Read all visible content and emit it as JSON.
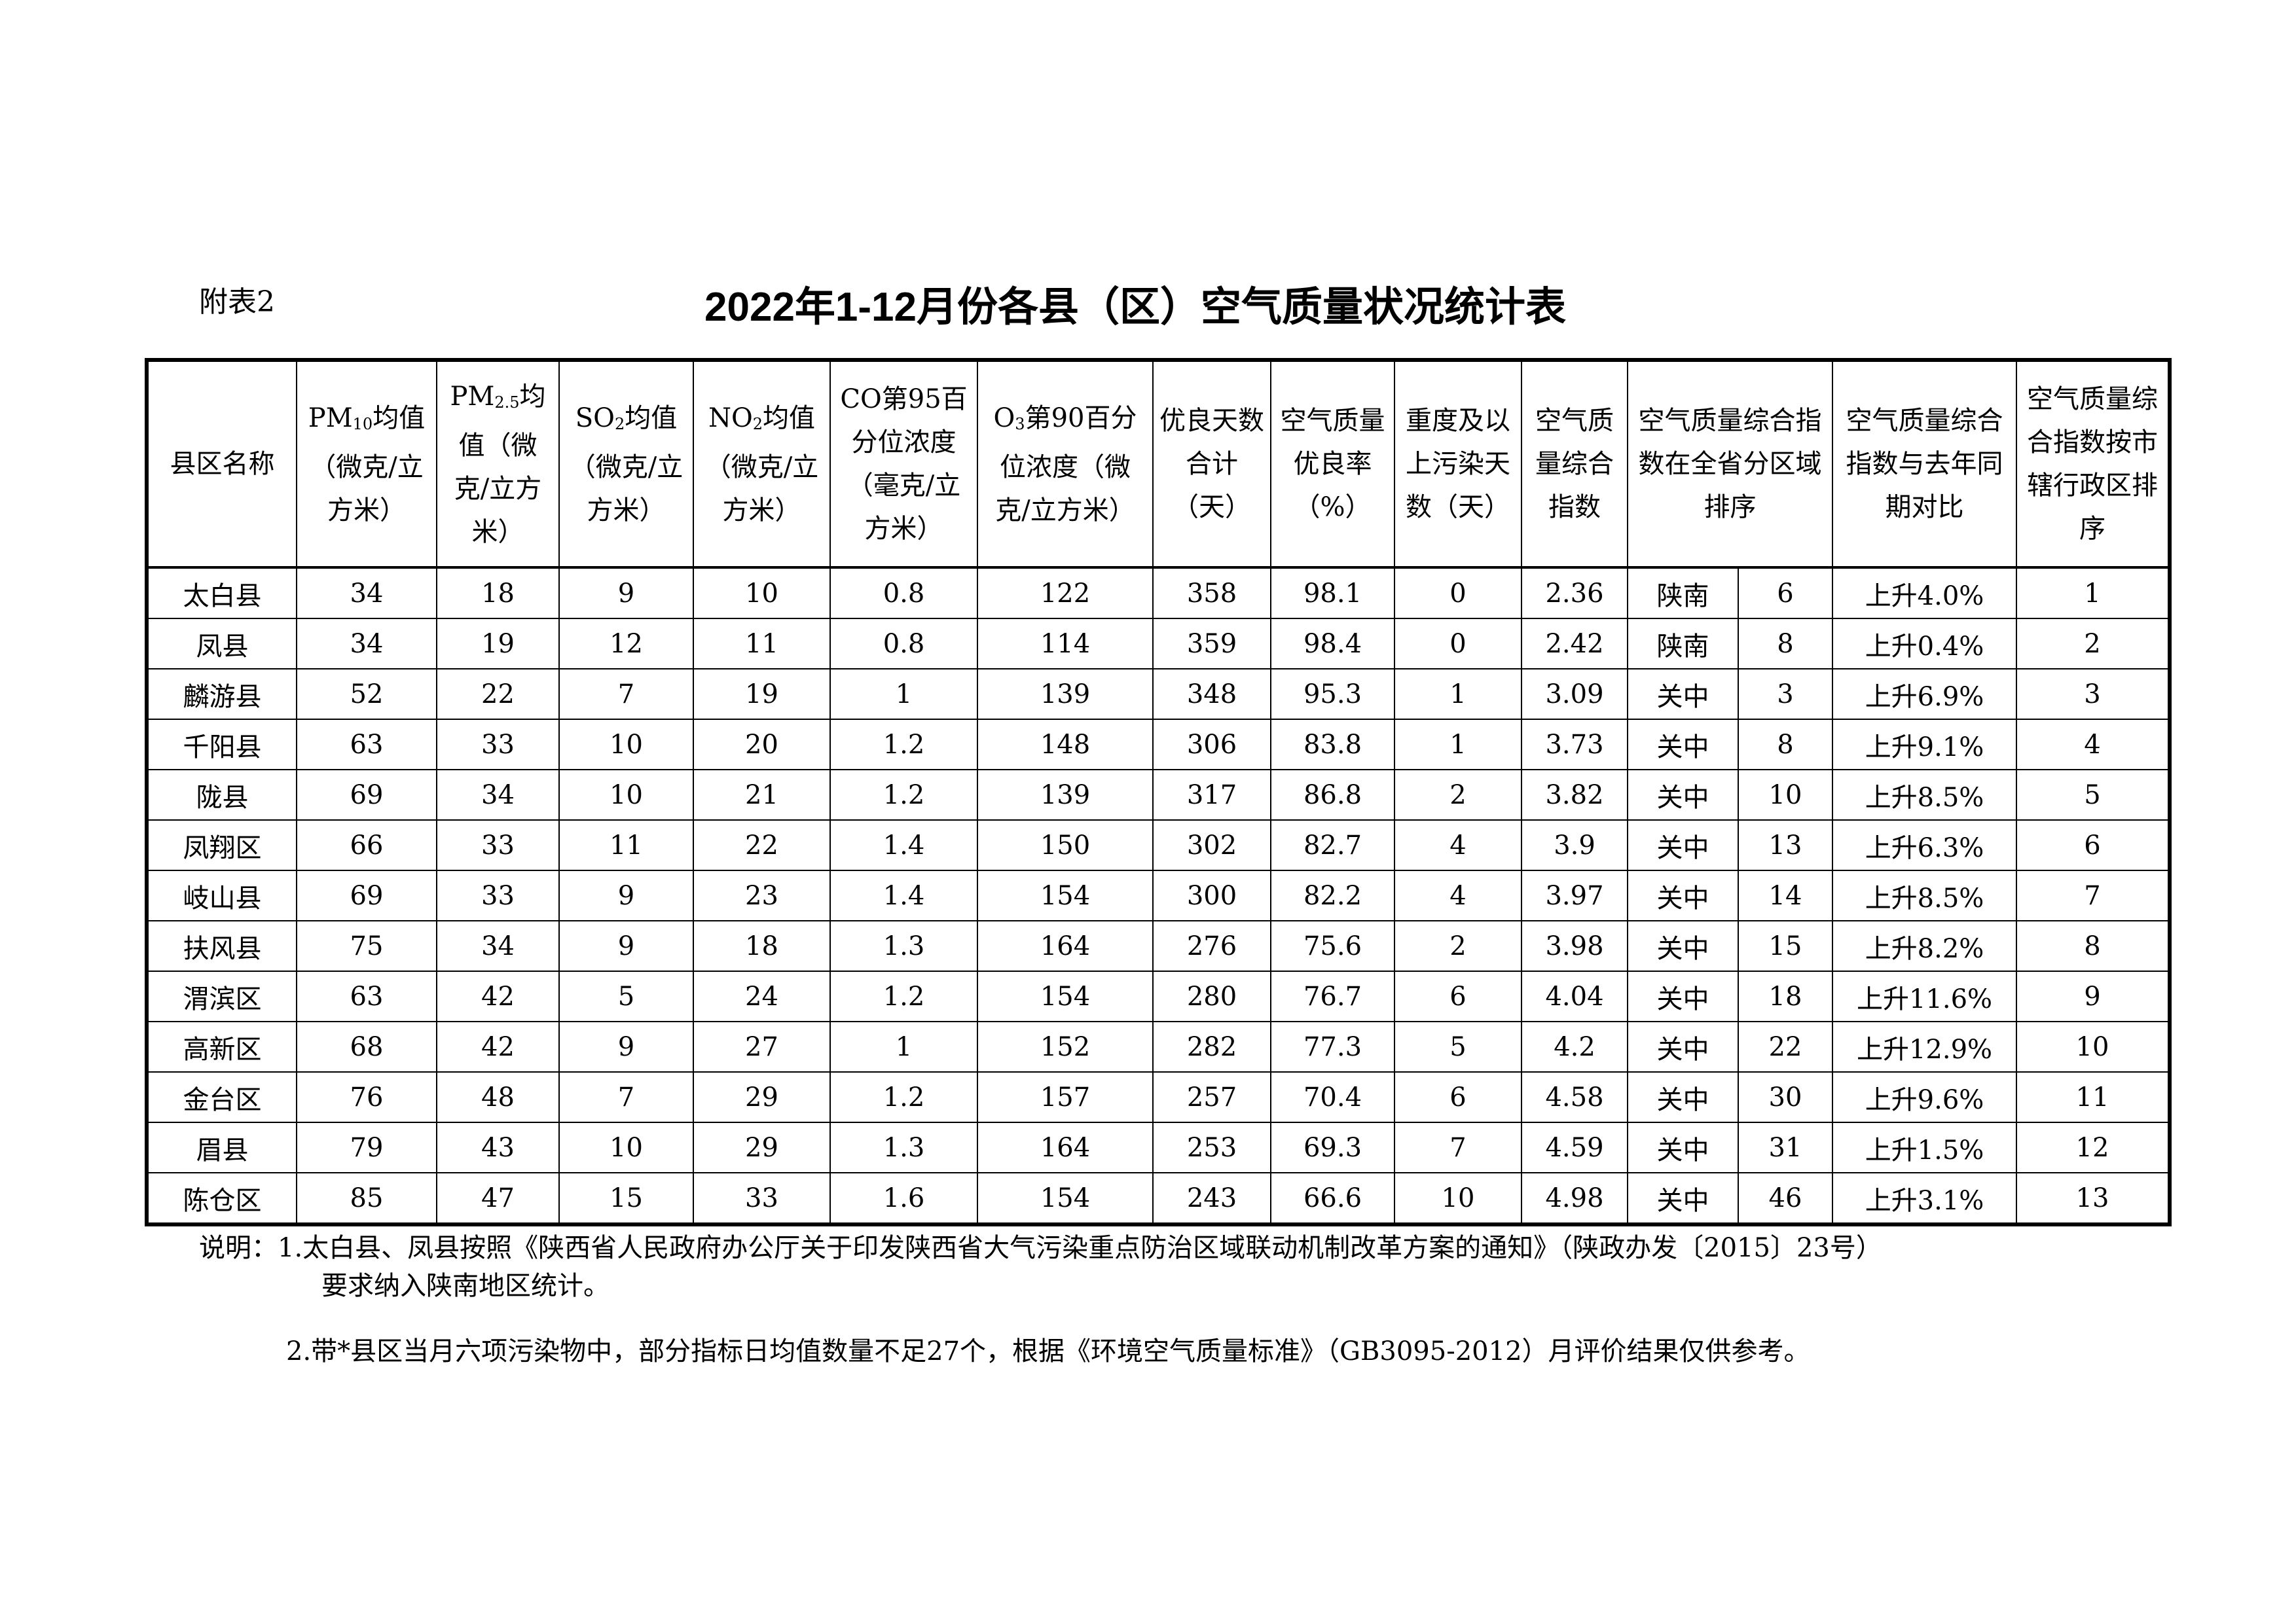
{
  "doc": {
    "label": "附表2",
    "title": "2022年1-12月份各县（区）空气质量状况统计表"
  },
  "table": {
    "headers": [
      {
        "pre": "",
        "sub": "",
        "post": "县区名称"
      },
      {
        "pre": "PM",
        "sub": "10",
        "post": "均值（微克/立方米）"
      },
      {
        "pre": "PM",
        "sub": "2.5",
        "post": "均值（微克/立方米）"
      },
      {
        "pre": "SO",
        "sub": "2",
        "post": "均值（微克/立方米）"
      },
      {
        "pre": "NO",
        "sub": "2",
        "post": "均值（微克/立方米）"
      },
      {
        "pre": "",
        "sub": "",
        "post": "CO第95百分位浓度（毫克/立方米）"
      },
      {
        "pre": "O",
        "sub": "3",
        "post": "第90百分位浓度（微克/立方米）"
      },
      {
        "pre": "",
        "sub": "",
        "post": "优良天数合计（天）"
      },
      {
        "pre": "",
        "sub": "",
        "post": "空气质量优良率（%）"
      },
      {
        "pre": "",
        "sub": "",
        "post": "重度及以上污染天数（天）"
      },
      {
        "pre": "",
        "sub": "",
        "post": "空气质量综合指数"
      },
      {
        "pre": "",
        "sub": "",
        "post": "空气质量综合指数在全省分区域排序"
      },
      {
        "pre": "",
        "sub": "",
        "post": "空气质量综合指数与去年同期对比"
      },
      {
        "pre": "",
        "sub": "",
        "post": "空气质量综合指数按市辖行政区排序"
      }
    ],
    "rows": [
      [
        "太白县",
        "34",
        "18",
        "9",
        "10",
        "0.8",
        "122",
        "358",
        "98.1",
        "0",
        "2.36",
        "陕南",
        "6",
        "上升4.0%",
        "1"
      ],
      [
        "凤县",
        "34",
        "19",
        "12",
        "11",
        "0.8",
        "114",
        "359",
        "98.4",
        "0",
        "2.42",
        "陕南",
        "8",
        "上升0.4%",
        "2"
      ],
      [
        "麟游县",
        "52",
        "22",
        "7",
        "19",
        "1",
        "139",
        "348",
        "95.3",
        "1",
        "3.09",
        "关中",
        "3",
        "上升6.9%",
        "3"
      ],
      [
        "千阳县",
        "63",
        "33",
        "10",
        "20",
        "1.2",
        "148",
        "306",
        "83.8",
        "1",
        "3.73",
        "关中",
        "8",
        "上升9.1%",
        "4"
      ],
      [
        "陇县",
        "69",
        "34",
        "10",
        "21",
        "1.2",
        "139",
        "317",
        "86.8",
        "2",
        "3.82",
        "关中",
        "10",
        "上升8.5%",
        "5"
      ],
      [
        "凤翔区",
        "66",
        "33",
        "11",
        "22",
        "1.4",
        "150",
        "302",
        "82.7",
        "4",
        "3.9",
        "关中",
        "13",
        "上升6.3%",
        "6"
      ],
      [
        "岐山县",
        "69",
        "33",
        "9",
        "23",
        "1.4",
        "154",
        "300",
        "82.2",
        "4",
        "3.97",
        "关中",
        "14",
        "上升8.5%",
        "7"
      ],
      [
        "扶风县",
        "75",
        "34",
        "9",
        "18",
        "1.3",
        "164",
        "276",
        "75.6",
        "2",
        "3.98",
        "关中",
        "15",
        "上升8.2%",
        "8"
      ],
      [
        "渭滨区",
        "63",
        "42",
        "5",
        "24",
        "1.2",
        "154",
        "280",
        "76.7",
        "6",
        "4.04",
        "关中",
        "18",
        "上升11.6%",
        "9"
      ],
      [
        "高新区",
        "68",
        "42",
        "9",
        "27",
        "1",
        "152",
        "282",
        "77.3",
        "5",
        "4.2",
        "关中",
        "22",
        "上升12.9%",
        "10"
      ],
      [
        "金台区",
        "76",
        "48",
        "7",
        "29",
        "1.2",
        "157",
        "257",
        "70.4",
        "6",
        "4.58",
        "关中",
        "30",
        "上升9.6%",
        "11"
      ],
      [
        "眉县",
        "79",
        "43",
        "10",
        "29",
        "1.3",
        "164",
        "253",
        "69.3",
        "7",
        "4.59",
        "关中",
        "31",
        "上升1.5%",
        "12"
      ],
      [
        "陈仓区",
        "85",
        "47",
        "15",
        "33",
        "1.6",
        "154",
        "243",
        "66.6",
        "10",
        "4.98",
        "关中",
        "46",
        "上升3.1%",
        "13"
      ]
    ]
  },
  "notes": {
    "line1": "说明：1.太白县、凤县按照《陕西省人民政府办公厅关于印发陕西省大气污染重点防治区域联动机制改革方案的通知》（陕政办发〔2015〕23号）",
    "line1b": "要求纳入陕南地区统计。",
    "line2": "2.带*县区当月六项污染物中，部分指标日均值数量不足27个，根据《环境空气质量标准》（GB3095-2012）月评价结果仅供参考。"
  }
}
